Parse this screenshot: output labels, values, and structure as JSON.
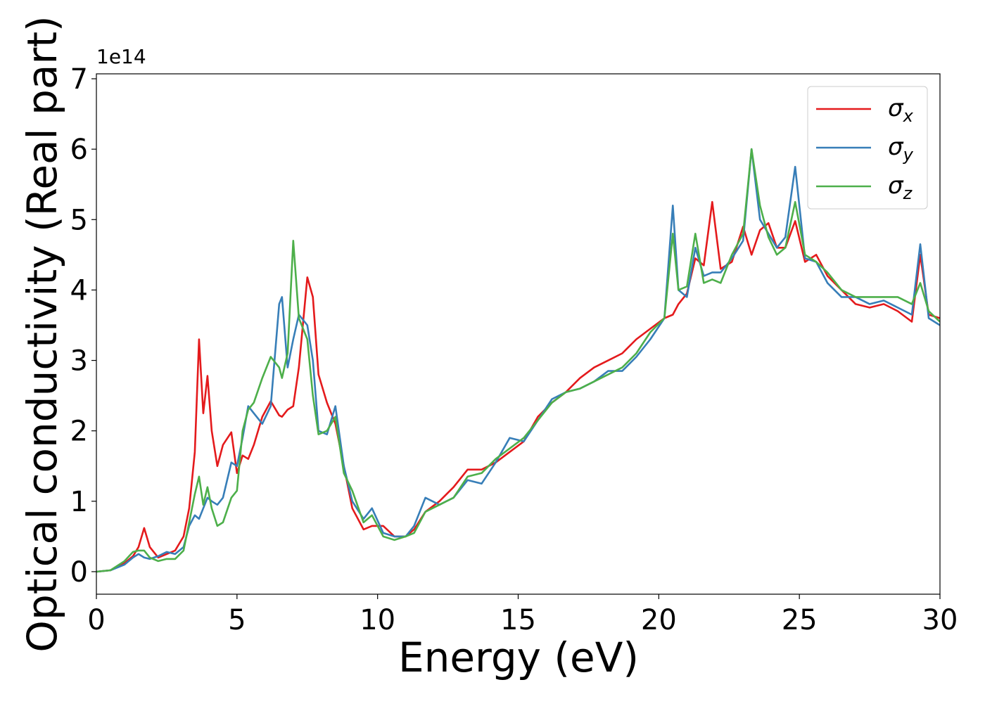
{
  "chart_data": {
    "type": "line",
    "x_label": "Energy (eV)",
    "y_label": "Optical conductivity (Real part)",
    "y_offset_label": "1e14",
    "legend": "upper right",
    "xlim": [
      0,
      30
    ],
    "ylim": [
      -0.32,
      7.07
    ],
    "xticks": [
      0,
      5,
      10,
      15,
      20,
      25,
      30
    ],
    "yticks": [
      0,
      1,
      2,
      3,
      4,
      5,
      6,
      7
    ],
    "x": [
      0,
      0.5,
      1,
      1.3,
      1.5,
      1.7,
      1.9,
      2.2,
      2.5,
      2.8,
      3.1,
      3.3,
      3.5,
      3.65,
      3.8,
      3.95,
      4.1,
      4.3,
      4.5,
      4.8,
      5.0,
      5.2,
      5.4,
      5.6,
      5.9,
      6.2,
      6.5,
      6.6,
      6.8,
      7.0,
      7.2,
      7.5,
      7.7,
      7.9,
      8.2,
      8.5,
      8.8,
      9.1,
      9.5,
      9.8,
      10.2,
      10.6,
      11.0,
      11.3,
      11.7,
      12.2,
      12.7,
      13.2,
      13.7,
      14.2,
      14.7,
      15.2,
      15.7,
      16.2,
      16.7,
      17.2,
      17.7,
      18.2,
      18.7,
      19.2,
      19.7,
      20.2,
      20.5,
      20.7,
      21.0,
      21.3,
      21.6,
      21.9,
      22.2,
      22.6,
      23.0,
      23.3,
      23.6,
      23.9,
      24.2,
      24.5,
      24.85,
      25.2,
      25.6,
      26.0,
      26.5,
      27.0,
      27.5,
      28.0,
      28.5,
      29.0,
      29.3,
      29.6,
      30
    ],
    "series": [
      {
        "name": "σx",
        "color": "#e41a1c",
        "values": [
          0,
          0.02,
          0.12,
          0.22,
          0.35,
          0.62,
          0.35,
          0.2,
          0.25,
          0.3,
          0.5,
          0.9,
          1.7,
          3.3,
          2.25,
          2.78,
          2.0,
          1.5,
          1.8,
          1.98,
          1.4,
          1.65,
          1.6,
          1.8,
          2.2,
          2.42,
          2.22,
          2.2,
          2.3,
          2.35,
          2.9,
          4.18,
          3.9,
          2.8,
          2.4,
          2.1,
          1.5,
          0.9,
          0.6,
          0.65,
          0.65,
          0.5,
          0.5,
          0.6,
          0.85,
          1.0,
          1.2,
          1.45,
          1.45,
          1.55,
          1.7,
          1.85,
          2.2,
          2.4,
          2.55,
          2.75,
          2.9,
          3.0,
          3.1,
          3.3,
          3.45,
          3.6,
          3.65,
          3.8,
          3.95,
          4.45,
          4.35,
          5.25,
          4.3,
          4.4,
          4.9,
          4.5,
          4.85,
          4.95,
          4.6,
          4.6,
          4.98,
          4.4,
          4.5,
          4.2,
          4.0,
          3.8,
          3.75,
          3.8,
          3.7,
          3.55,
          4.5,
          3.65,
          3.6
        ]
      },
      {
        "name": "σy",
        "color": "#377eb8",
        "values": [
          0,
          0.02,
          0.1,
          0.2,
          0.25,
          0.2,
          0.18,
          0.22,
          0.28,
          0.25,
          0.35,
          0.65,
          0.8,
          0.75,
          0.9,
          1.05,
          1.0,
          0.95,
          1.05,
          1.55,
          1.5,
          1.9,
          2.35,
          2.25,
          2.1,
          2.35,
          3.8,
          3.9,
          2.9,
          3.3,
          3.65,
          3.5,
          3.0,
          2.0,
          1.95,
          2.35,
          1.5,
          1.0,
          0.75,
          0.9,
          0.55,
          0.5,
          0.5,
          0.65,
          1.05,
          0.95,
          1.05,
          1.3,
          1.25,
          1.55,
          1.9,
          1.85,
          2.15,
          2.45,
          2.55,
          2.6,
          2.7,
          2.85,
          2.85,
          3.05,
          3.3,
          3.6,
          5.2,
          4.0,
          3.9,
          4.6,
          4.2,
          4.25,
          4.25,
          4.45,
          4.7,
          6.0,
          5.0,
          4.8,
          4.6,
          4.75,
          5.75,
          4.45,
          4.4,
          4.1,
          3.9,
          3.9,
          3.8,
          3.85,
          3.75,
          3.65,
          4.65,
          3.6,
          3.5
        ]
      },
      {
        "name": "σz",
        "color": "#4daf4a",
        "values": [
          0,
          0.02,
          0.15,
          0.28,
          0.3,
          0.3,
          0.2,
          0.15,
          0.18,
          0.18,
          0.3,
          0.7,
          1.1,
          1.35,
          0.95,
          1.2,
          0.9,
          0.65,
          0.7,
          1.05,
          1.15,
          2.0,
          2.3,
          2.4,
          2.75,
          3.05,
          2.9,
          2.75,
          3.1,
          4.7,
          3.6,
          3.3,
          2.5,
          1.95,
          2.0,
          2.2,
          1.4,
          1.15,
          0.7,
          0.8,
          0.5,
          0.45,
          0.5,
          0.55,
          0.85,
          0.95,
          1.05,
          1.35,
          1.4,
          1.6,
          1.75,
          1.9,
          2.15,
          2.4,
          2.55,
          2.6,
          2.7,
          2.8,
          2.9,
          3.1,
          3.4,
          3.6,
          4.8,
          4.0,
          4.05,
          4.8,
          4.1,
          4.15,
          4.1,
          4.5,
          4.8,
          6.0,
          5.2,
          4.75,
          4.5,
          4.6,
          5.25,
          4.5,
          4.4,
          4.25,
          4.0,
          3.9,
          3.9,
          3.9,
          3.9,
          3.8,
          4.1,
          3.7,
          3.55
        ]
      }
    ]
  }
}
